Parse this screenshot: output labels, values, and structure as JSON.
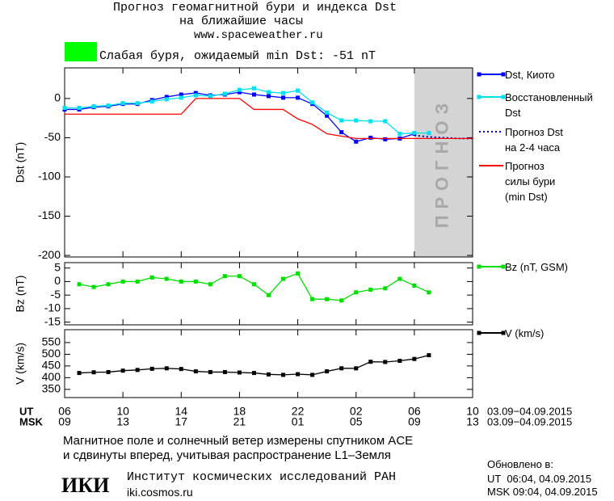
{
  "header": {
    "title": "Прогноз геомагнитной бури и индекса Dst",
    "subtitle": "на ближайшие часы",
    "url": "www.spaceweather.ru",
    "status": "Слабая буря, ожидаемый min Dst: -51 nT"
  },
  "chart_data": [
    {
      "type": "line",
      "ylabel": "Dst (nT)",
      "xlim": [
        0,
        28
      ],
      "ylim": [
        -202,
        39
      ],
      "yticks": [
        0,
        -50,
        -100,
        -150,
        -200
      ],
      "forecast_region": [
        24,
        28
      ],
      "forecast_label": "ПРОГНОЗ",
      "series": [
        {
          "name": "Dst, Киото",
          "color": "#0000ff",
          "style": "solid",
          "marker": true,
          "x": [
            0,
            1,
            2,
            3,
            4,
            5,
            6,
            7,
            8,
            9,
            10,
            11,
            12,
            13,
            14,
            15,
            16,
            17,
            18,
            19,
            20,
            21,
            22,
            23,
            24
          ],
          "values": [
            -14,
            -14,
            -11,
            -10,
            -7,
            -7,
            -2,
            2,
            5,
            7,
            4,
            5,
            8,
            5,
            3,
            1,
            1,
            -7,
            -22,
            -43,
            -55,
            -50,
            -52,
            -51,
            -45
          ]
        },
        {
          "name": "Восстановленный\nDst",
          "color": "#00e0f0",
          "style": "solid",
          "marker": true,
          "x": [
            0,
            1,
            2,
            3,
            4,
            5,
            6,
            7,
            8,
            9,
            10,
            11,
            12,
            13,
            14,
            15,
            16,
            17,
            18,
            19,
            20,
            21,
            22,
            23,
            24,
            25
          ],
          "values": [
            -12,
            -12,
            -10,
            -9,
            -6,
            -6,
            -4,
            -1,
            1,
            4,
            3,
            6,
            11,
            13,
            8,
            7,
            10,
            -5,
            -18,
            -28,
            -28,
            -29,
            -29,
            -45,
            -44,
            -44
          ]
        },
        {
          "name": "Прогноз Dst\nна 2-4 часа",
          "color": "#0000c0",
          "style": "dotted",
          "marker": false,
          "x": [
            24,
            25,
            26,
            27,
            28
          ],
          "values": [
            -47,
            -49,
            -50,
            -51,
            -51
          ]
        },
        {
          "name": "Прогноз\nсилы бури\n(min Dst)",
          "color": "#ff0000",
          "style": "solid",
          "marker": false,
          "x": [
            0,
            8,
            9,
            12,
            13,
            15,
            16,
            17,
            18,
            19,
            20,
            28
          ],
          "values": [
            -20,
            -20,
            0,
            0,
            -14,
            -14,
            -26,
            -33,
            -45,
            -48,
            -51,
            -51
          ]
        }
      ]
    },
    {
      "type": "line",
      "ylabel": "Bz (nT)",
      "xlim": [
        0,
        28
      ],
      "ylim": [
        -16,
        7
      ],
      "yticks": [
        5,
        0,
        -5,
        -10,
        -15
      ],
      "series": [
        {
          "name": "Bz (nT, GSM)",
          "color": "#00dd00",
          "style": "solid",
          "marker": true,
          "x": [
            1,
            2,
            3,
            4,
            5,
            6,
            7,
            8,
            9,
            10,
            11,
            12,
            13,
            14,
            15,
            16,
            17,
            18,
            19,
            20,
            21,
            22,
            23,
            24,
            25
          ],
          "values": [
            -1,
            -2,
            -1,
            0,
            0,
            1.5,
            1,
            0,
            0,
            -1,
            2,
            2,
            -1,
            -5,
            1,
            3,
            -6.5,
            -6.5,
            -7,
            -4,
            -3,
            -2.5,
            1,
            -1.5,
            -4
          ]
        }
      ]
    },
    {
      "type": "line",
      "ylabel": "V (km/s)",
      "xlim": [
        0,
        28
      ],
      "ylim": [
        315,
        605
      ],
      "yticks": [
        350,
        400,
        450,
        500,
        550
      ],
      "xaxis_ut": "UT",
      "xaxis_msk": "MSK",
      "date_range": "03.09−04.09.2015",
      "xticks": [
        {
          "value": 0,
          "label": "06"
        },
        {
          "value": 4,
          "label": "10"
        },
        {
          "value": 8,
          "label": "14"
        },
        {
          "value": 12,
          "label": "18"
        },
        {
          "value": 16,
          "label": "22"
        },
        {
          "value": 20,
          "label": "02"
        },
        {
          "value": 24,
          "label": "06"
        },
        {
          "value": 28,
          "label": "10"
        }
      ],
      "xticks_msk": [
        {
          "value": 0,
          "label": "09"
        },
        {
          "value": 4,
          "label": "13"
        },
        {
          "value": 8,
          "label": "17"
        },
        {
          "value": 12,
          "label": "21"
        },
        {
          "value": 16,
          "label": "01"
        },
        {
          "value": 20,
          "label": "05"
        },
        {
          "value": 24,
          "label": "09"
        },
        {
          "value": 28,
          "label": "13"
        }
      ],
      "series": [
        {
          "name": "V (km/s)",
          "color": "#000000",
          "style": "solid",
          "marker": true,
          "x": [
            1,
            2,
            3,
            4,
            5,
            6,
            7,
            8,
            9,
            10,
            11,
            12,
            13,
            14,
            15,
            16,
            17,
            18,
            19,
            20,
            21,
            22,
            23,
            24,
            25
          ],
          "values": [
            420,
            423,
            424,
            430,
            433,
            438,
            440,
            437,
            427,
            424,
            424,
            422,
            420,
            414,
            412,
            415,
            412,
            427,
            440,
            440,
            468,
            467,
            472,
            480,
            496
          ]
        }
      ]
    }
  ],
  "footer": {
    "note_1": "Магнитное поле и солнечный ветер измерены спутником ACE",
    "note_2": "и сдвинуты вперед, учитывая распространение L1–Земля",
    "logo": "ИКИ",
    "institute": "Институт космических исследований РАН",
    "site": "iki.cosmos.ru",
    "updated": "Обновлено в:",
    "updated_ut": "UT  06:04, 04.09.2015",
    "updated_msk": "MSK 09:04, 04.09.2015"
  }
}
